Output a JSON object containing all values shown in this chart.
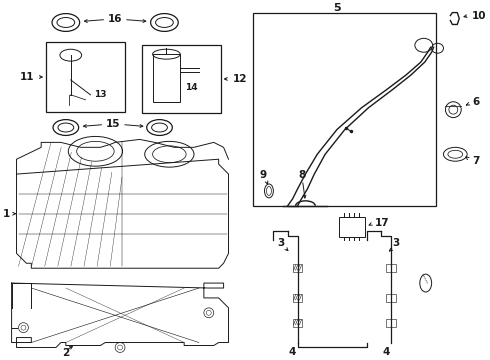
{
  "bg_color": "#ffffff",
  "line_color": "#1a1a1a",
  "figsize": [
    4.9,
    3.6
  ],
  "dpi": 100,
  "gray": "#888888",
  "darkgray": "#555555"
}
